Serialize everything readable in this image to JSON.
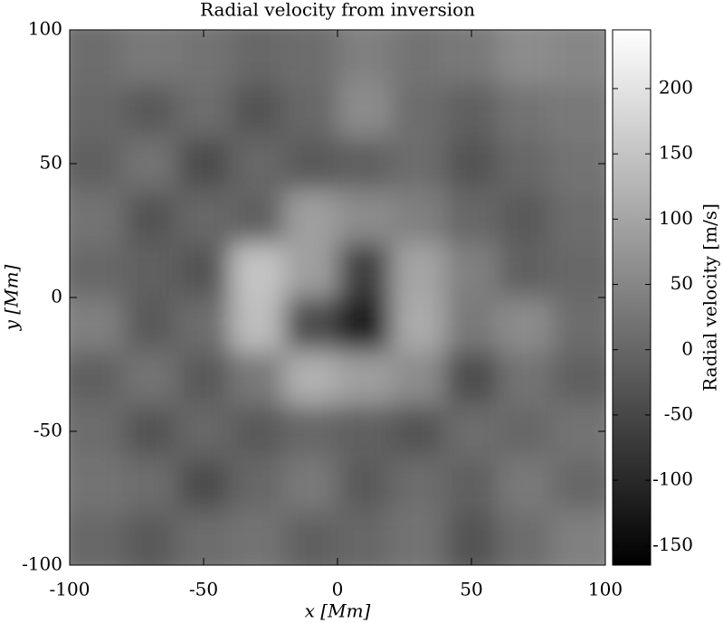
{
  "chart_data": {
    "type": "heatmap",
    "title": "Radial velocity from inversion",
    "x_label": "x [Mm]",
    "y_label": "y [Mm]",
    "colorbar_label": "Radial velocity [m/s]",
    "x": [
      -90,
      -70,
      -50,
      -30,
      -10,
      10,
      30,
      50,
      70,
      90
    ],
    "y": [
      90,
      70,
      50,
      30,
      10,
      -10,
      -30,
      -50,
      -70,
      -90
    ],
    "z": [
      [
        10,
        30,
        20,
        0,
        10,
        40,
        20,
        30,
        60,
        50
      ],
      [
        0,
        -20,
        10,
        -30,
        0,
        60,
        10,
        -10,
        20,
        30
      ],
      [
        -10,
        20,
        -40,
        0,
        -20,
        -10,
        10,
        -30,
        0,
        20
      ],
      [
        20,
        -30,
        0,
        -10,
        90,
        60,
        40,
        0,
        -20,
        10
      ],
      [
        0,
        -10,
        -30,
        150,
        90,
        -60,
        100,
        40,
        -10,
        0
      ],
      [
        40,
        -20,
        10,
        140,
        -40,
        -120,
        110,
        30,
        60,
        10
      ],
      [
        -10,
        20,
        -20,
        30,
        120,
        90,
        60,
        -40,
        20,
        -10
      ],
      [
        10,
        -30,
        0,
        -20,
        0,
        -10,
        -30,
        10,
        0,
        20
      ],
      [
        20,
        10,
        -40,
        0,
        30,
        -20,
        10,
        -10,
        30,
        0
      ],
      [
        0,
        -20,
        10,
        20,
        -10,
        0,
        20,
        -30,
        10,
        40
      ]
    ],
    "colormap": "gray",
    "xlim": [
      -100,
      100
    ],
    "ylim": [
      -100,
      100
    ],
    "xticks": [
      -100,
      -50,
      0,
      50,
      100
    ],
    "yticks": [
      -100,
      -50,
      0,
      50,
      100
    ],
    "clim": [
      -165,
      245
    ],
    "cticks": [
      -150,
      -100,
      -50,
      0,
      50,
      100,
      150,
      200
    ]
  }
}
